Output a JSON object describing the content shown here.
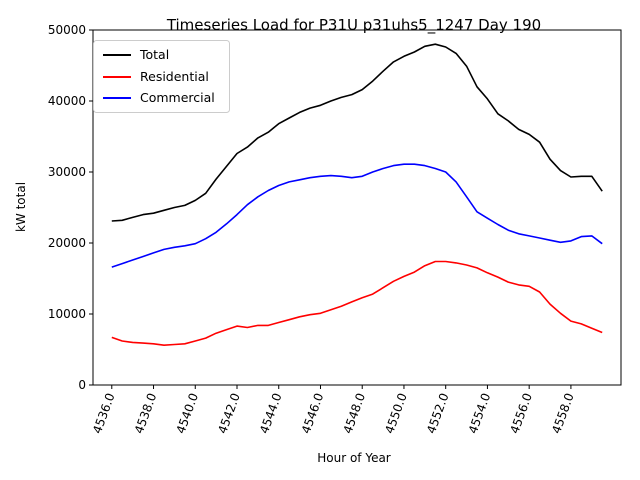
{
  "chart_data": {
    "type": "line",
    "title": "Timeseries Load for P31U p31uhs5_1247  Day 190",
    "xlabel": "Hour of Year",
    "ylabel": "kW total",
    "xlim": [
      4535.1,
      4560.4
    ],
    "ylim": [
      0,
      50000
    ],
    "xticks": [
      4536,
      4538,
      4540,
      4542,
      4544,
      4546,
      4548,
      4550,
      4552,
      4554,
      4556,
      4558
    ],
    "xtick_labels": [
      "4536.0",
      "4538.0",
      "4540.0",
      "4542.0",
      "4544.0",
      "4546.0",
      "4548.0",
      "4550.0",
      "4552.0",
      "4554.0",
      "4556.0",
      "4558.0"
    ],
    "yticks": [
      0,
      10000,
      20000,
      30000,
      40000,
      50000
    ],
    "ytick_labels": [
      "0",
      "10000",
      "20000",
      "30000",
      "40000",
      "50000"
    ],
    "legend_position": "top-left",
    "x": [
      4536,
      4536.5,
      4537,
      4537.5,
      4538,
      4538.5,
      4539,
      4539.5,
      4540,
      4540.5,
      4541,
      4541.5,
      4542,
      4542.5,
      4543,
      4543.5,
      4544,
      4544.5,
      4545,
      4545.5,
      4546,
      4546.5,
      4547,
      4547.5,
      4548,
      4548.5,
      4549,
      4549.5,
      4550,
      4550.5,
      4551,
      4551.5,
      4552,
      4552.5,
      4553,
      4553.5,
      4554,
      4554.5,
      4555,
      4555.5,
      4556,
      4556.5,
      4557,
      4557.5,
      4558,
      4558.5,
      4559,
      4559.5
    ],
    "series": [
      {
        "name": "Total",
        "color": "#000000",
        "values": [
          23100,
          23200,
          23600,
          24000,
          24200,
          24600,
          25000,
          25300,
          26000,
          27000,
          29000,
          30800,
          32600,
          33500,
          34800,
          35600,
          36800,
          37600,
          38400,
          39000,
          39400,
          40000,
          40500,
          40900,
          41600,
          42800,
          44200,
          45500,
          46300,
          46900,
          47700,
          48000,
          47600,
          46700,
          44900,
          42000,
          40300,
          38200,
          37200,
          36000,
          35300,
          34200,
          31800,
          30200,
          29300,
          29400,
          29400,
          27300
        ]
      },
      {
        "name": "Residential",
        "color": "#ff0000",
        "values": [
          6700,
          6200,
          6000,
          5900,
          5800,
          5600,
          5700,
          5800,
          6200,
          6600,
          7300,
          7800,
          8300,
          8100,
          8400,
          8400,
          8800,
          9200,
          9600,
          9900,
          10100,
          10600,
          11100,
          11700,
          12300,
          12800,
          13700,
          14600,
          15300,
          15900,
          16800,
          17400,
          17400,
          17200,
          16900,
          16500,
          15800,
          15200,
          14500,
          14100,
          13900,
          13100,
          11400,
          10100,
          9000,
          8600,
          8000,
          7400
        ]
      },
      {
        "name": "Commercial",
        "color": "#0000ff",
        "values": [
          16600,
          17100,
          17600,
          18100,
          18600,
          19100,
          19400,
          19600,
          19900,
          20600,
          21500,
          22700,
          24000,
          25400,
          26500,
          27400,
          28100,
          28600,
          28900,
          29200,
          29400,
          29500,
          29400,
          29200,
          29400,
          30000,
          30500,
          30900,
          31100,
          31100,
          30900,
          30500,
          30000,
          28600,
          26500,
          24400,
          23500,
          22600,
          21800,
          21300,
          21000,
          20700,
          20400,
          20100,
          20300,
          20900,
          21000,
          19900
        ]
      }
    ]
  }
}
